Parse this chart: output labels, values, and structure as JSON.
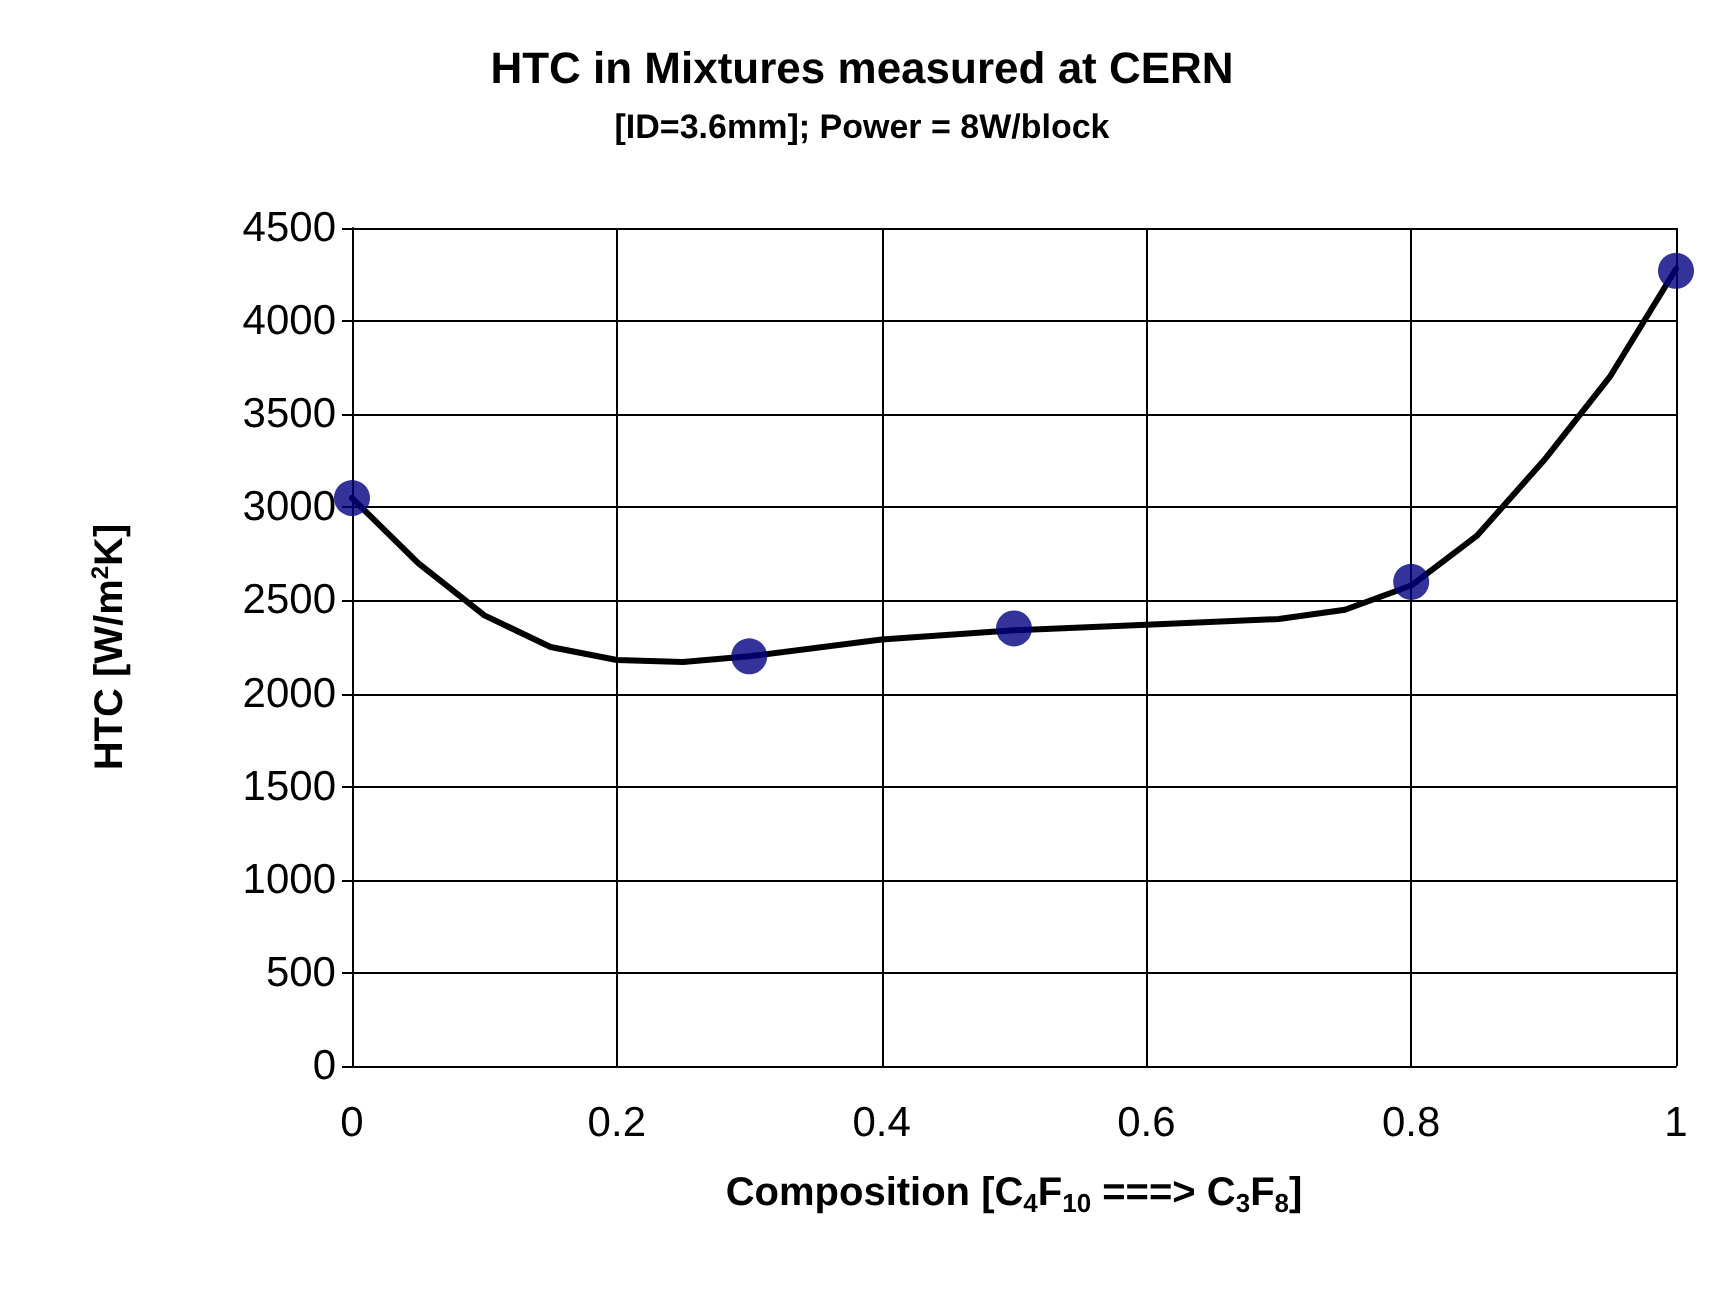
{
  "chart_data": {
    "type": "scatter",
    "title": "HTC in Mixtures measured at CERN",
    "subtitle": "[ID=3.6mm]; Power = 8W/block",
    "xlabel": "Composition [C$_{4}$F$_{10}$ ===> C$_{3}$F$_{8}$]",
    "ylabel": "HTC [W/m$^{2}$K]",
    "xlim": [
      0,
      1
    ],
    "xticks": [
      0,
      0.2,
      0.4,
      0.6,
      0.8,
      1
    ],
    "ylim": [
      0,
      4500
    ],
    "yticks": [
      0,
      500,
      1000,
      1500,
      2000,
      2500,
      3000,
      3500,
      4000,
      4500
    ],
    "grid": true,
    "series": [
      {
        "color": "#000080",
        "marker": "circle",
        "x": [
          0,
          0.3,
          0.5,
          0.8,
          1
        ],
        "values": [
          3050,
          2200,
          2350,
          2600,
          4270
        ]
      },
      {
        "type": "line",
        "color": "#000000",
        "marker": "none",
        "line_style": "solid",
        "x": [
          0,
          0.05,
          0.1,
          0.15,
          0.2,
          0.25,
          0.3,
          0.4,
          0.5,
          0.6,
          0.7,
          0.75,
          0.8,
          0.85,
          0.9,
          0.95,
          1
        ],
        "values": [
          3050,
          2700,
          2420,
          2250,
          2180,
          2170,
          2200,
          2290,
          2340,
          2370,
          2400,
          2450,
          2580,
          2850,
          3250,
          3700,
          4280
        ]
      }
    ]
  }
}
